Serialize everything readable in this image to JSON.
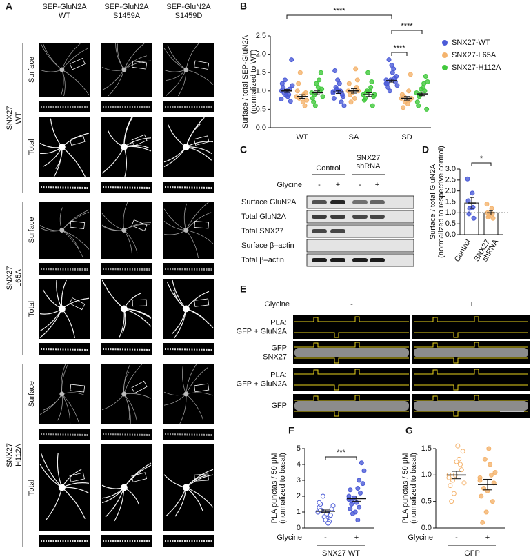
{
  "figure": {
    "A": {
      "letter": "A",
      "columns": [
        [
          "SEP-GluN2A",
          "WT"
        ],
        [
          "SEP-GluN2A",
          "S1459A"
        ],
        [
          "SEP-GluN2A",
          "S1459D"
        ]
      ],
      "groups": [
        {
          "label": [
            "SNX27",
            "WT"
          ],
          "rows": [
            "Surface",
            "Total"
          ]
        },
        {
          "label": [
            "SNX27",
            "L65A"
          ],
          "rows": [
            "Surface",
            "Total"
          ]
        },
        {
          "label": [
            "SNX27",
            "H112A"
          ],
          "rows": [
            "Surface",
            "Total"
          ]
        }
      ]
    },
    "B": {
      "letter": "B",
      "type": "dot",
      "ylabel": [
        "Surface / total SEP-GluN2A",
        "(normalized to WT)"
      ],
      "categories": [
        "WT",
        "SA",
        "SD"
      ],
      "ylim": [
        0,
        2.5
      ],
      "yticks": [
        {
          "value": 0,
          "label": "0.0"
        },
        {
          "value": 0.5,
          "label": "0.5"
        },
        {
          "value": 1,
          "label": "1.0"
        },
        {
          "value": 1.5,
          "label": "1.5"
        },
        {
          "value": 2,
          "label": "2.0"
        },
        {
          "value": 2.5,
          "label": "2.5"
        }
      ],
      "series": [
        {
          "name": "SNX27-WT",
          "color": "#4b5bd7",
          "mean": [
            1.0,
            0.97,
            1.28
          ],
          "sem": [
            0.04,
            0.04,
            0.04
          ],
          "points": [
            [
              1.0,
              0.85,
              1.2,
              0.9,
              1.1,
              1.05,
              0.95,
              0.72,
              1.3,
              1.85,
              0.88,
              1.15,
              1.0,
              0.78
            ],
            [
              0.95,
              1.2,
              0.8,
              1.0,
              1.55,
              0.7,
              1.1,
              0.9,
              1.05,
              0.85,
              1.3,
              0.6,
              1.0,
              0.98
            ],
            [
              1.3,
              1.5,
              1.2,
              1.6,
              1.1,
              1.35,
              1.85,
              1.25,
              1.0,
              1.4,
              1.3,
              1.15,
              1.7,
              1.2
            ]
          ]
        },
        {
          "name": "SNX27-L65A",
          "color": "#f4b36d",
          "mean": [
            0.85,
            1.0,
            0.8
          ],
          "sem": [
            0.05,
            0.06,
            0.05
          ],
          "points": [
            [
              0.85,
              0.7,
              1.0,
              0.9,
              1.2,
              0.6,
              0.8,
              0.95,
              1.5,
              0.75
            ],
            [
              1.0,
              0.8,
              1.2,
              1.6,
              0.9,
              1.1,
              0.7,
              1.3,
              0.95,
              1.0
            ],
            [
              0.8,
              0.65,
              0.9,
              1.0,
              0.55,
              0.75,
              0.85,
              1.45,
              0.7,
              0.8
            ]
          ]
        },
        {
          "name": "SNX27-H112A",
          "color": "#41c83c",
          "mean": [
            0.95,
            0.9,
            0.92
          ],
          "sem": [
            0.05,
            0.05,
            0.05
          ],
          "points": [
            [
              0.95,
              1.1,
              0.8,
              1.3,
              0.7,
              1.0,
              0.9,
              1.5,
              0.6,
              1.05,
              1.2,
              0.85
            ],
            [
              0.9,
              1.0,
              0.75,
              1.1,
              0.8,
              1.25,
              0.95,
              0.6,
              1.0,
              0.85,
              1.5,
              0.9
            ],
            [
              0.95,
              1.1,
              0.7,
              1.2,
              0.6,
              1.0,
              0.85,
              1.4,
              0.9,
              0.5,
              1.05,
              1.25
            ]
          ]
        }
      ],
      "significance": [
        "****",
        "****",
        "****"
      ]
    },
    "C": {
      "letter": "C",
      "groups": [
        [
          "Control"
        ],
        [
          "SNX27",
          "shRNA"
        ]
      ],
      "treatment": "Glycine",
      "lanes": [
        "-",
        "+",
        "-",
        "+"
      ],
      "rows": [
        "Surface GluN2A",
        "Total GluN2A",
        "Total SNX27",
        "Surface β–actin",
        "Total β–actin"
      ]
    },
    "D": {
      "letter": "D",
      "type": "bar",
      "ylabel": [
        "Surface / total GluN2A",
        "(normalized to respective control)"
      ],
      "categories": [
        [
          "Control"
        ],
        [
          "SNX27",
          "shRNA"
        ]
      ],
      "ylim": [
        0,
        3
      ],
      "yticks": [
        {
          "value": 0,
          "label": "0.0"
        },
        {
          "value": 0.5,
          "label": "0.5"
        },
        {
          "value": 1,
          "label": "1.0"
        },
        {
          "value": 1.5,
          "label": "1.5"
        },
        {
          "value": 2,
          "label": "2.0"
        },
        {
          "value": 2.5,
          "label": "2.5"
        },
        {
          "value": 3,
          "label": "3.0"
        }
      ],
      "reference_line": 1,
      "colors": [
        "#4b5bd7",
        "#f4b36d"
      ],
      "mean": [
        1.45,
        1.0
      ],
      "sem": [
        0.25,
        0.1
      ],
      "points": [
        [
          2.55,
          1.9,
          1.55,
          1.25,
          0.95,
          0.75,
          1.2
        ],
        [
          1.4,
          1.2,
          1.0,
          0.95,
          0.8,
          0.75,
          0.85
        ]
      ],
      "significance": "*"
    },
    "E": {
      "letter": "E",
      "treatment": "Glycine",
      "conditions": [
        "-",
        "+"
      ],
      "rows": [
        [
          "PLA:",
          "GFP + GluN2A"
        ],
        [
          "GFP",
          "SNX27"
        ],
        [
          "PLA:",
          "GFP + GluN2A"
        ],
        [
          "GFP"
        ]
      ]
    },
    "F": {
      "letter": "F",
      "type": "dot",
      "ylabel": [
        "PLA punctas / 50 µM",
        "(normalized to basal)"
      ],
      "treatment": "Glycine",
      "categories": [
        "-",
        "+"
      ],
      "group": "SNX27 WT",
      "color": "#4b5bd7",
      "filled": [
        false,
        true
      ],
      "ylim": [
        0,
        5
      ],
      "yticks": [
        0,
        1,
        2,
        3,
        4,
        5
      ],
      "mean": [
        1.05,
        1.85
      ],
      "sem": [
        0.08,
        0.17
      ],
      "points": [
        [
          1.0,
          0.6,
          1.3,
          0.9,
          1.5,
          0.4,
          1.1,
          0.8,
          2.0,
          1.2,
          0.7,
          1.4,
          0.5,
          1.0,
          0.9,
          1.6,
          0.3,
          1.1
        ],
        [
          1.8,
          2.5,
          1.2,
          3.0,
          1.5,
          2.2,
          0.9,
          4.1,
          1.9,
          2.8,
          1.0,
          3.6,
          1.6,
          2.0,
          0.5,
          2.4,
          1.3,
          1.7
        ]
      ],
      "significance": "***"
    },
    "G": {
      "letter": "G",
      "type": "dot",
      "ylabel": [
        "PLA punctas / 50 µM",
        "(normalized to basal)"
      ],
      "treatment": "Glycine",
      "categories": [
        "-",
        "+"
      ],
      "group": "GFP",
      "color": "#f4b36d",
      "filled": [
        false,
        true
      ],
      "ylim": [
        0,
        1.5
      ],
      "yticks": [
        {
          "value": 0,
          "label": "0.0"
        },
        {
          "value": 0.5,
          "label": "0.5"
        },
        {
          "value": 1,
          "label": "1.0"
        },
        {
          "value": 1.5,
          "label": "1.5"
        }
      ],
      "mean": [
        1.0,
        0.82
      ],
      "sem": [
        0.07,
        0.1
      ],
      "points": [
        [
          1.0,
          1.55,
          0.8,
          1.3,
          0.5,
          1.2,
          0.9,
          1.1,
          0.65,
          1.45,
          1.0,
          0.85,
          1.25,
          0.95
        ],
        [
          0.9,
          1.5,
          0.6,
          1.2,
          0.1,
          1.0,
          0.75,
          0.5,
          1.3,
          0.85,
          0.3,
          1.05,
          0.7,
          0.95
        ]
      ]
    }
  }
}
